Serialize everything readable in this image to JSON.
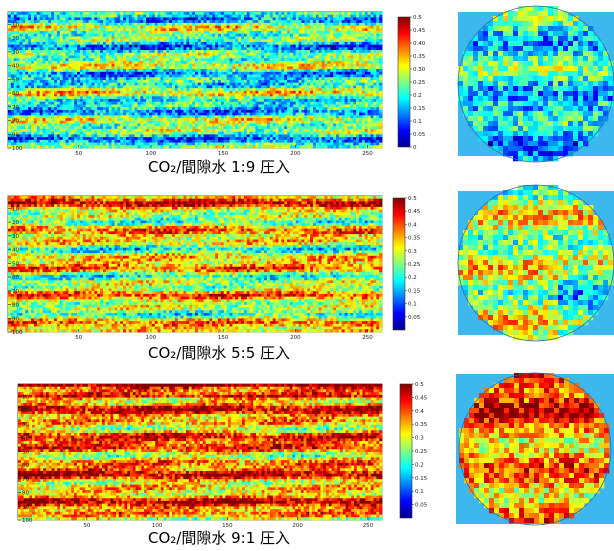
{
  "chart_data": [
    {
      "type": "heatmap",
      "panel": "a",
      "caption": "CO₂/間隙水 1:9 圧入",
      "x_ticks": [
        50,
        100,
        150,
        200,
        250
      ],
      "y_ticks": [
        10,
        20,
        30,
        40,
        50,
        60,
        70,
        80,
        90,
        100
      ],
      "xlim": [
        1,
        260
      ],
      "ylim": [
        1,
        100
      ],
      "colorbar_ticks": [
        0.5,
        0.45,
        0.4,
        0.35,
        0.3,
        0.25,
        0.2,
        0.15,
        0.1,
        0.05,
        0
      ],
      "colorbar_tick_labels": [
        "0.5",
        "0.45",
        "0.40",
        "0.35",
        "0.30",
        "0.25",
        "0.2",
        "0.15",
        "0.1",
        "0.05",
        "0"
      ],
      "clim": [
        0,
        0.5
      ],
      "mean_level": 0.22,
      "cross_section_mean_level": 0.2
    },
    {
      "type": "heatmap",
      "panel": "b",
      "caption": "CO₂/間隙水 5:5 圧入",
      "x_ticks": [
        50,
        100,
        150,
        200,
        250
      ],
      "y_ticks": [
        10,
        20,
        30,
        40,
        50,
        60,
        70,
        80,
        90,
        100
      ],
      "xlim": [
        1,
        260
      ],
      "ylim": [
        1,
        100
      ],
      "colorbar_ticks": [
        0.5,
        0.45,
        0.4,
        0.35,
        0.3,
        0.25,
        0.2,
        0.15,
        0.1,
        0.05
      ],
      "colorbar_tick_labels": [
        "0.5",
        "0.45",
        "0.4",
        "0.35",
        "0.3",
        "0.25",
        "0.2",
        "0.15",
        "0.1",
        "0.05"
      ],
      "clim": [
        0,
        0.5
      ],
      "mean_level": 0.3,
      "cross_section_mean_level": 0.28
    },
    {
      "type": "heatmap",
      "panel": "c",
      "caption": "CO₂/間隙水 9:1 圧入",
      "x_ticks": [
        50,
        100,
        150,
        200,
        250
      ],
      "y_ticks": [
        10,
        20,
        30,
        40,
        50,
        60,
        70,
        80,
        90,
        100
      ],
      "xlim": [
        1,
        260
      ],
      "ylim": [
        1,
        100
      ],
      "colorbar_ticks": [
        0.5,
        0.45,
        0.4,
        0.35,
        0.3,
        0.25,
        0.2,
        0.15,
        0.1,
        0.05
      ],
      "colorbar_tick_labels": [
        "0.5",
        "0.45",
        "0.4",
        "0.35",
        "0.3",
        "0.25",
        "0.2",
        "0.15",
        "0.1",
        "0.05"
      ],
      "clim": [
        0,
        0.5
      ],
      "mean_level": 0.37,
      "cross_section_mean_level": 0.36
    }
  ],
  "colors": {
    "cross_section_background": "#3db8ee",
    "colormap": [
      "#00008f",
      "#0000ff",
      "#0080ff",
      "#00ffff",
      "#80ff80",
      "#ffff00",
      "#ff8000",
      "#ff0000",
      "#800000"
    ]
  }
}
